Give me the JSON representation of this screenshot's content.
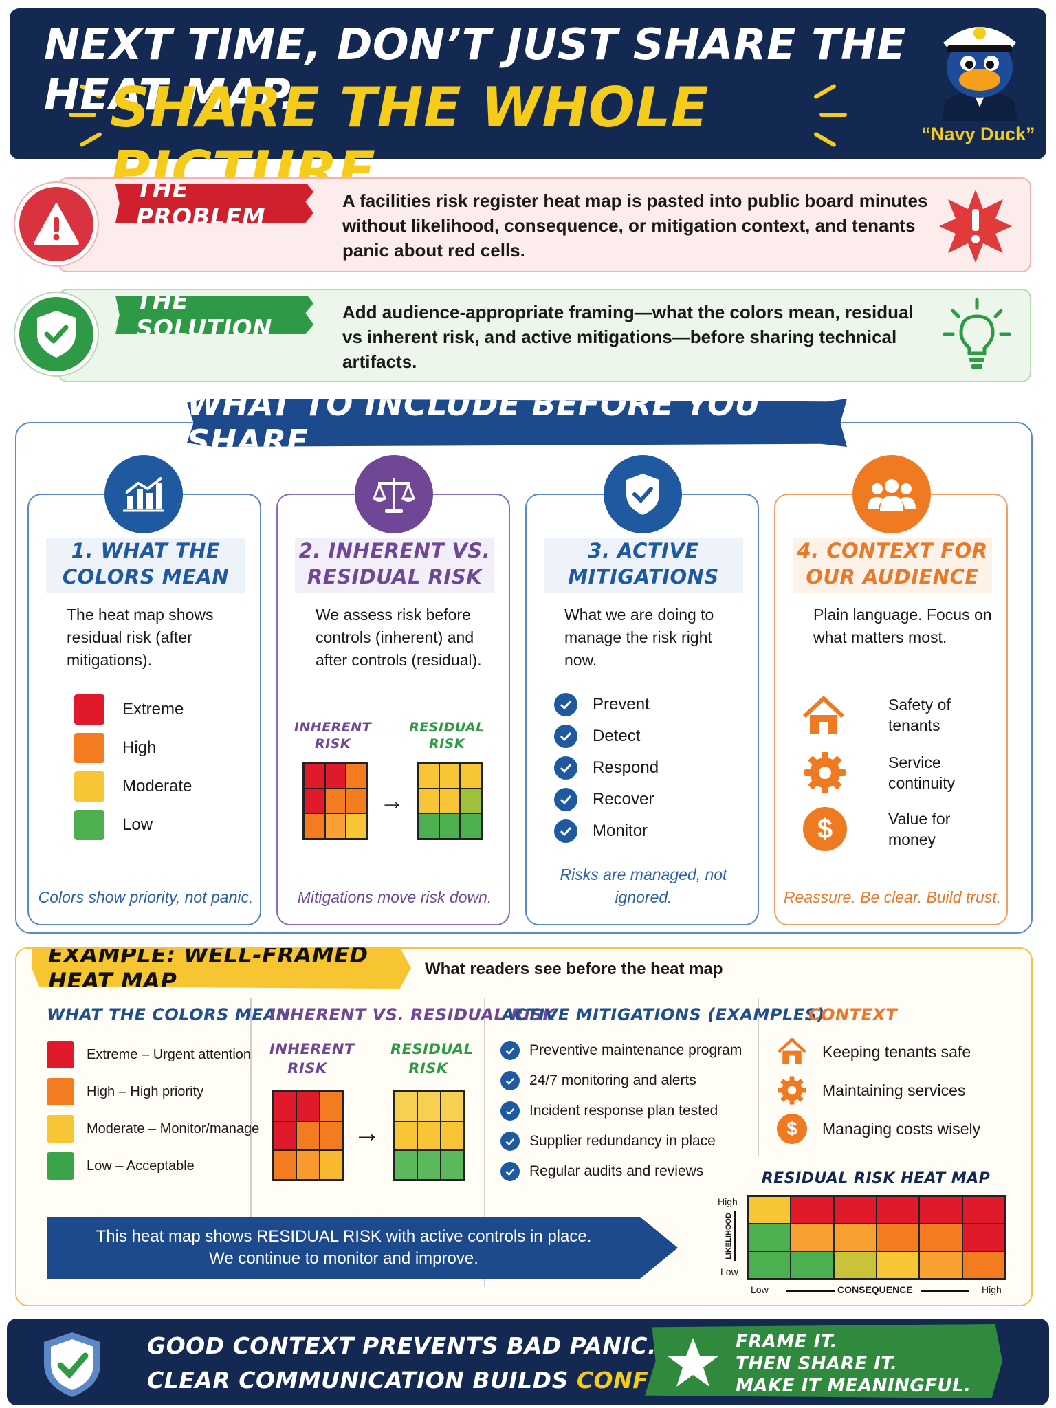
{
  "header": {
    "line1": "NEXT TIME, DON’T JUST SHARE THE HEAT MAP.",
    "line2": "SHARE THE WHOLE PICTURE.",
    "mascot_label": "“Navy Duck”"
  },
  "problem": {
    "tag": "THE PROBLEM",
    "text": "A facilities risk register heat map is pasted into public board minutes without likelihood, consequence, or mitigation context, and tenants panic about red cells."
  },
  "solution": {
    "tag": "THE SOLUTION",
    "text": "Add audience-appropriate framing—what the colors mean, residual vs inherent risk, and active mitigations—before sharing technical artifacts."
  },
  "section_title": "WHAT TO INCLUDE BEFORE YOU SHARE",
  "cards": [
    {
      "title": "1. WHAT THE COLORS MEAN",
      "body": "The heat map shows residual risk (after mitigations).",
      "legend": [
        "Extreme",
        "High",
        "Moderate",
        "Low"
      ],
      "footer": "Colors show priority, not panic."
    },
    {
      "title": "2. INHERENT VS. RESIDUAL RISK",
      "body": "We assess risk before controls (inherent) and after controls (residual).",
      "inherent_label": "INHERENT RISK",
      "residual_label": "RESIDUAL RISK",
      "footer": "Mitigations move risk down."
    },
    {
      "title": "3. ACTIVE MITIGATIONS",
      "body": "What we are doing to manage the risk right now.",
      "items": [
        "Prevent",
        "Detect",
        "Respond",
        "Recover",
        "Monitor"
      ],
      "footer": "Risks are managed, not ignored."
    },
    {
      "title": "4. CONTEXT FOR OUR AUDIENCE",
      "body": "Plain language. Focus on what matters most.",
      "items": [
        "Safety of tenants",
        "Service continuity",
        "Value for money"
      ],
      "footer": "Reassure. Be clear. Build trust."
    }
  ],
  "example": {
    "tag": "EXAMPLE: WELL-FRAMED HEAT MAP",
    "subtitle": "What readers see before the heat map",
    "colors_title": "WHAT THE COLORS MEAN",
    "colors": [
      "Extreme – Urgent attention",
      "High – High priority",
      "Moderate – Monitor/manage",
      "Low – Acceptable"
    ],
    "risk_title": "INHERENT VS. RESIDUAL RISK",
    "inherent_label": "INHERENT RISK",
    "residual_label": "RESIDUAL RISK",
    "mitigations_title": "ACTIVE MITIGATIONS (EXAMPLES)",
    "mitigations": [
      "Preventive maintenance program",
      "24/7 monitoring and alerts",
      "Incident response plan tested",
      "Supplier redundancy in place",
      "Regular audits and reviews"
    ],
    "context_title": "CONTEXT",
    "context": [
      "Keeping tenants safe",
      "Maintaining services",
      "Managing costs wisely"
    ],
    "banner_line1": "This heat map shows RESIDUAL RISK with active controls in place.",
    "banner_line2": "We continue to monitor and improve.",
    "heatmap": {
      "title": "RESIDUAL RISK HEAT MAP",
      "y_high": "High",
      "y_low": "Low",
      "y_label": "LIKELIHOOD",
      "x_low": "Low",
      "x_high": "High",
      "x_label": "CONSEQUENCE"
    }
  },
  "footer": {
    "line1": "GOOD CONTEXT PREVENTS BAD PANIC.",
    "line2a": "CLEAR COMMUNICATION BUILDS ",
    "line2b": "CONFIDENCE.",
    "right1": "FRAME IT.",
    "right2": "THEN SHARE IT.",
    "right3": "MAKE IT MEANINGFUL."
  },
  "colors": {
    "navy": "#142952",
    "yellow": "#f5cc1a",
    "red": "#e0192b",
    "orange": "#f47c20",
    "amber": "#f8c536",
    "green": "#3aa548",
    "blue": "#1f5aa0",
    "purple": "#6f4796"
  }
}
